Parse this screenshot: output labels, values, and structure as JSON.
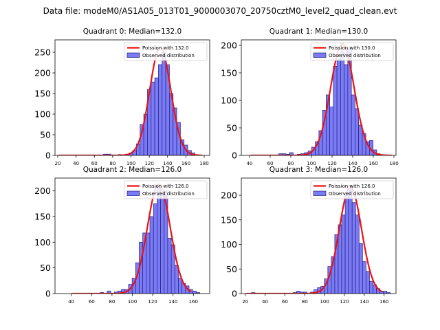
{
  "figure": {
    "title": "Data file: modeM0/AS1A05_013T01_9000003070_20750cztM0_level2_quad_clean.evt"
  },
  "chart_data": [
    {
      "type": "bar",
      "title": "Quadrant 0: Median=132.0",
      "xlabel": "",
      "ylabel": "",
      "xlim": [
        17,
        186
      ],
      "ylim": [
        0,
        280
      ],
      "xticks": [
        20,
        40,
        60,
        80,
        100,
        120,
        140,
        160,
        180
      ],
      "yticks": [
        0,
        50,
        100,
        150,
        200,
        250
      ],
      "legend_position": "upper right",
      "legend": {
        "line_label": "Poission with 132.0",
        "bar_label": "Observed distribution"
      },
      "poisson": {
        "mean": 132.0,
        "peak": 262
      },
      "histogram": {
        "bin_width": 4,
        "bins": [
          {
            "x": 72,
            "count": 3
          },
          {
            "x": 76,
            "count": 3
          },
          {
            "x": 88,
            "count": 2
          },
          {
            "x": 96,
            "count": 3
          },
          {
            "x": 100,
            "count": 6
          },
          {
            "x": 104,
            "count": 12
          },
          {
            "x": 108,
            "count": 28
          },
          {
            "x": 112,
            "count": 75
          },
          {
            "x": 116,
            "count": 100
          },
          {
            "x": 120,
            "count": 160
          },
          {
            "x": 124,
            "count": 178
          },
          {
            "x": 128,
            "count": 188
          },
          {
            "x": 132,
            "count": 220
          },
          {
            "x": 136,
            "count": 250
          },
          {
            "x": 140,
            "count": 220
          },
          {
            "x": 144,
            "count": 150
          },
          {
            "x": 148,
            "count": 115
          },
          {
            "x": 152,
            "count": 80
          },
          {
            "x": 156,
            "count": 38
          },
          {
            "x": 160,
            "count": 25
          },
          {
            "x": 164,
            "count": 12
          },
          {
            "x": 168,
            "count": 6
          },
          {
            "x": 172,
            "count": 2
          }
        ]
      }
    },
    {
      "type": "bar",
      "title": "Quadrant 1: Median=130.0",
      "xlabel": "",
      "ylabel": "",
      "xlim": [
        32,
        182
      ],
      "ylim": [
        0,
        210
      ],
      "xticks": [
        40,
        60,
        80,
        100,
        120,
        140,
        160,
        180
      ],
      "yticks": [
        0,
        50,
        100,
        150,
        200
      ],
      "legend_position": "upper right",
      "legend": {
        "line_label": "Poission with 130.0",
        "bar_label": "Observed distribution"
      },
      "poisson": {
        "mean": 130.0,
        "peak": 203
      },
      "histogram": {
        "bin_width": 3.5,
        "bins": [
          {
            "x": 70,
            "count": 3
          },
          {
            "x": 73.5,
            "count": 3
          },
          {
            "x": 77,
            "count": 2
          },
          {
            "x": 80.5,
            "count": 5
          },
          {
            "x": 88,
            "count": 2
          },
          {
            "x": 91.5,
            "count": 3
          },
          {
            "x": 95,
            "count": 5
          },
          {
            "x": 98.5,
            "count": 8
          },
          {
            "x": 102,
            "count": 15
          },
          {
            "x": 105.5,
            "count": 25
          },
          {
            "x": 109,
            "count": 45
          },
          {
            "x": 112.5,
            "count": 82
          },
          {
            "x": 116,
            "count": 110
          },
          {
            "x": 119.5,
            "count": 88
          },
          {
            "x": 123,
            "count": 162
          },
          {
            "x": 126.5,
            "count": 175
          },
          {
            "x": 130,
            "count": 190
          },
          {
            "x": 133.5,
            "count": 165
          },
          {
            "x": 137,
            "count": 195
          },
          {
            "x": 140.5,
            "count": 110
          },
          {
            "x": 144,
            "count": 85
          },
          {
            "x": 147.5,
            "count": 55
          },
          {
            "x": 151,
            "count": 40
          },
          {
            "x": 154.5,
            "count": 25
          },
          {
            "x": 158,
            "count": 27
          },
          {
            "x": 161.5,
            "count": 10
          },
          {
            "x": 165,
            "count": 3
          }
        ]
      }
    },
    {
      "type": "bar",
      "title": "Quadrant 2: Median=126.0",
      "xlabel": "",
      "ylabel": "",
      "xlim": [
        24,
        176
      ],
      "ylim": [
        0,
        225
      ],
      "xticks": [
        40,
        60,
        80,
        100,
        120,
        140,
        160
      ],
      "yticks": [
        0,
        50,
        100,
        150,
        200
      ],
      "legend_position": "upper right",
      "legend": {
        "line_label": "Poission with 126.0",
        "bar_label": "Observed distribution"
      },
      "poisson": {
        "mean": 126.0,
        "peak": 213
      },
      "histogram": {
        "bin_width": 3.5,
        "bins": [
          {
            "x": 70,
            "count": 2
          },
          {
            "x": 77,
            "count": 5
          },
          {
            "x": 84,
            "count": 3
          },
          {
            "x": 87.5,
            "count": 5
          },
          {
            "x": 91,
            "count": 8
          },
          {
            "x": 94.5,
            "count": 8
          },
          {
            "x": 98,
            "count": 18
          },
          {
            "x": 101.5,
            "count": 30
          },
          {
            "x": 105,
            "count": 60
          },
          {
            "x": 108.5,
            "count": 100
          },
          {
            "x": 112,
            "count": 118
          },
          {
            "x": 115.5,
            "count": 118
          },
          {
            "x": 119,
            "count": 150
          },
          {
            "x": 122.5,
            "count": 175
          },
          {
            "x": 126,
            "count": 210
          },
          {
            "x": 129.5,
            "count": 200
          },
          {
            "x": 133,
            "count": 200
          },
          {
            "x": 136.5,
            "count": 108
          },
          {
            "x": 140,
            "count": 95
          },
          {
            "x": 143.5,
            "count": 55
          },
          {
            "x": 147,
            "count": 30
          },
          {
            "x": 150.5,
            "count": 20
          },
          {
            "x": 154,
            "count": 15
          },
          {
            "x": 157.5,
            "count": 8
          },
          {
            "x": 161,
            "count": 5
          },
          {
            "x": 164.5,
            "count": 2
          }
        ]
      }
    },
    {
      "type": "bar",
      "title": "Quadrant 3: Median=126.0",
      "xlabel": "",
      "ylabel": "",
      "xlim": [
        16,
        172
      ],
      "ylim": [
        0,
        235
      ],
      "xticks": [
        20,
        40,
        60,
        80,
        100,
        120,
        140,
        160
      ],
      "yticks": [
        0,
        50,
        100,
        150,
        200
      ],
      "legend_position": "upper right",
      "legend": {
        "line_label": "Poission with 126.0",
        "bar_label": "Observed distribution"
      },
      "poisson": {
        "mean": 126.0,
        "peak": 217
      },
      "histogram": {
        "bin_width": 3.5,
        "bins": [
          {
            "x": 28,
            "count": 2
          },
          {
            "x": 70,
            "count": 2
          },
          {
            "x": 73.5,
            "count": 5
          },
          {
            "x": 77,
            "count": 3
          },
          {
            "x": 80.5,
            "count": 3
          },
          {
            "x": 87.5,
            "count": 3
          },
          {
            "x": 91,
            "count": 8
          },
          {
            "x": 94.5,
            "count": 12
          },
          {
            "x": 98,
            "count": 15
          },
          {
            "x": 101.5,
            "count": 30
          },
          {
            "x": 105,
            "count": 55
          },
          {
            "x": 108.5,
            "count": 75
          },
          {
            "x": 112,
            "count": 120
          },
          {
            "x": 115.5,
            "count": 140
          },
          {
            "x": 119,
            "count": 160
          },
          {
            "x": 122.5,
            "count": 205
          },
          {
            "x": 126,
            "count": 220
          },
          {
            "x": 129.5,
            "count": 185
          },
          {
            "x": 133,
            "count": 160
          },
          {
            "x": 136.5,
            "count": 102
          },
          {
            "x": 140,
            "count": 65
          },
          {
            "x": 143.5,
            "count": 45
          },
          {
            "x": 147,
            "count": 25
          },
          {
            "x": 150.5,
            "count": 18
          },
          {
            "x": 154,
            "count": 10
          },
          {
            "x": 157.5,
            "count": 5
          },
          {
            "x": 161,
            "count": 5
          },
          {
            "x": 164.5,
            "count": 2
          }
        ]
      }
    }
  ]
}
